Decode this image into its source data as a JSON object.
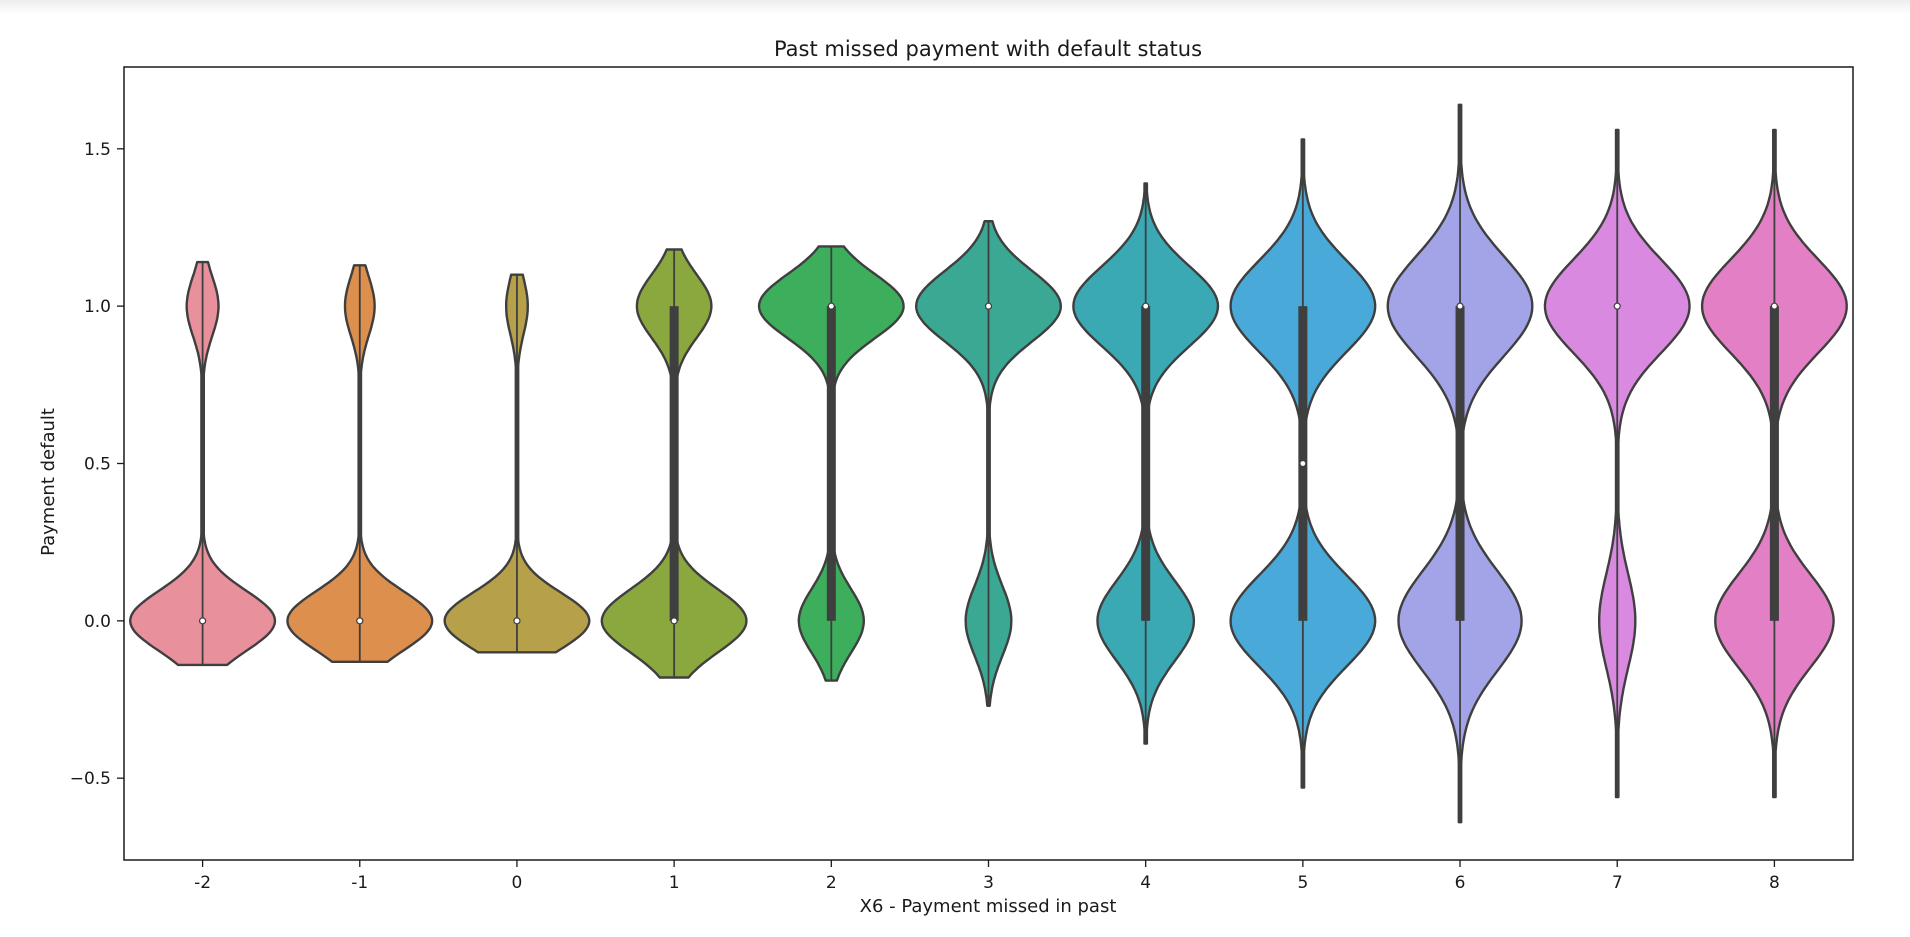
{
  "chart_data": {
    "type": "violin",
    "title": "Past missed payment with default status",
    "xlabel": "X6 - Payment missed in past",
    "ylabel": "Payment default",
    "categories": [
      "-2",
      "-1",
      "0",
      "1",
      "2",
      "3",
      "4",
      "5",
      "6",
      "7",
      "8"
    ],
    "yticks": [
      -0.5,
      0.0,
      0.5,
      1.0,
      1.5
    ],
    "ytick_labels": [
      "−0.5",
      "0.0",
      "0.5",
      "1.0",
      "1.5"
    ],
    "ylim": [
      -0.76,
      1.76
    ],
    "grid": false,
    "colors": [
      "#e8909b",
      "#dd8f4e",
      "#b6a04a",
      "#8aa83e",
      "#3dae5c",
      "#3aa893",
      "#3aa9b4",
      "#49a9d9",
      "#a3a3e8",
      "#d98ae0",
      "#e27fc5"
    ],
    "violins": [
      {
        "category": "-2",
        "share_default": 0.18,
        "q1": 0.0,
        "median": 0.0,
        "q3": 0.0,
        "min": -0.14,
        "max": 1.14
      },
      {
        "category": "-1",
        "share_default": 0.17,
        "q1": 0.0,
        "median": 0.0,
        "q3": 0.0,
        "min": -0.13,
        "max": 1.13
      },
      {
        "category": "0",
        "share_default": 0.13,
        "q1": 0.0,
        "median": 0.0,
        "q3": 0.0,
        "min": -0.1,
        "max": 1.1
      },
      {
        "category": "1",
        "share_default": 0.34,
        "q1": 0.0,
        "median": 0.0,
        "q3": 1.0,
        "min": -0.18,
        "max": 1.18
      },
      {
        "category": "2",
        "share_default": 0.69,
        "q1": 0.0,
        "median": 1.0,
        "q3": 1.0,
        "min": -0.19,
        "max": 1.19
      },
      {
        "category": "3",
        "share_default": 0.76,
        "q1": 1.0,
        "median": 1.0,
        "q3": 1.0,
        "min": -0.27,
        "max": 1.27
      },
      {
        "category": "4",
        "share_default": 0.6,
        "q1": 0.0,
        "median": 1.0,
        "q3": 1.0,
        "min": -0.39,
        "max": 1.39
      },
      {
        "category": "5",
        "share_default": 0.5,
        "q1": 0.0,
        "median": 0.5,
        "q3": 1.0,
        "min": -0.53,
        "max": 1.53
      },
      {
        "category": "6",
        "share_default": 0.54,
        "q1": 0.0,
        "median": 1.0,
        "q3": 1.0,
        "min": -0.64,
        "max": 1.64
      },
      {
        "category": "7",
        "share_default": 0.8,
        "q1": 1.0,
        "median": 1.0,
        "q3": 1.0,
        "min": -0.56,
        "max": 1.56
      },
      {
        "category": "8",
        "share_default": 0.55,
        "q1": 0.0,
        "median": 1.0,
        "q3": 1.0,
        "min": -0.56,
        "max": 1.56
      }
    ]
  }
}
